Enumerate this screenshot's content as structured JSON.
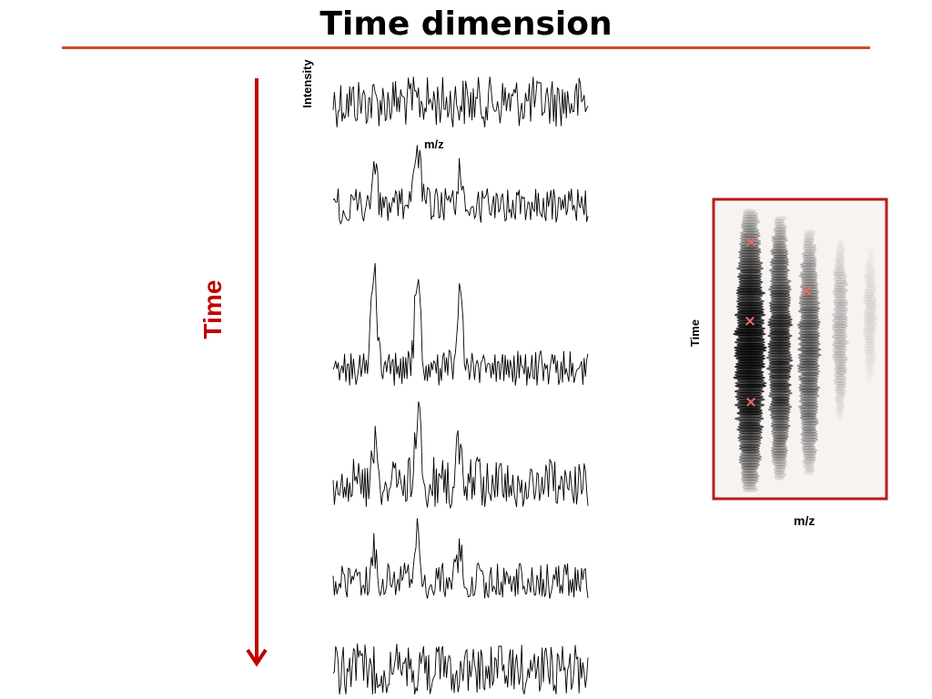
{
  "slide": {
    "title": "Time dimension"
  },
  "spectra_stack": {
    "intensity_label": "Intensity",
    "mz_label": "m/z",
    "spectra": [
      {
        "peak_heights": [
          0,
          0,
          0
        ]
      },
      {
        "peak_heights": [
          0.55,
          0.85,
          0.45
        ]
      },
      {
        "peak_heights": [
          1.0,
          1.0,
          0.75
        ]
      },
      {
        "peak_heights": [
          0.65,
          1.0,
          0.55
        ]
      },
      {
        "peak_heights": [
          0.45,
          0.7,
          0.4
        ]
      },
      {
        "peak_heights": [
          0,
          0,
          0
        ]
      }
    ]
  },
  "time_axis": {
    "label": "Time",
    "color": "#c00000"
  },
  "heatmap_panel": {
    "y_label": "Time",
    "x_label": "m/z",
    "border_color": "#b71c1c",
    "marker_color": "#e86a6a"
  }
}
